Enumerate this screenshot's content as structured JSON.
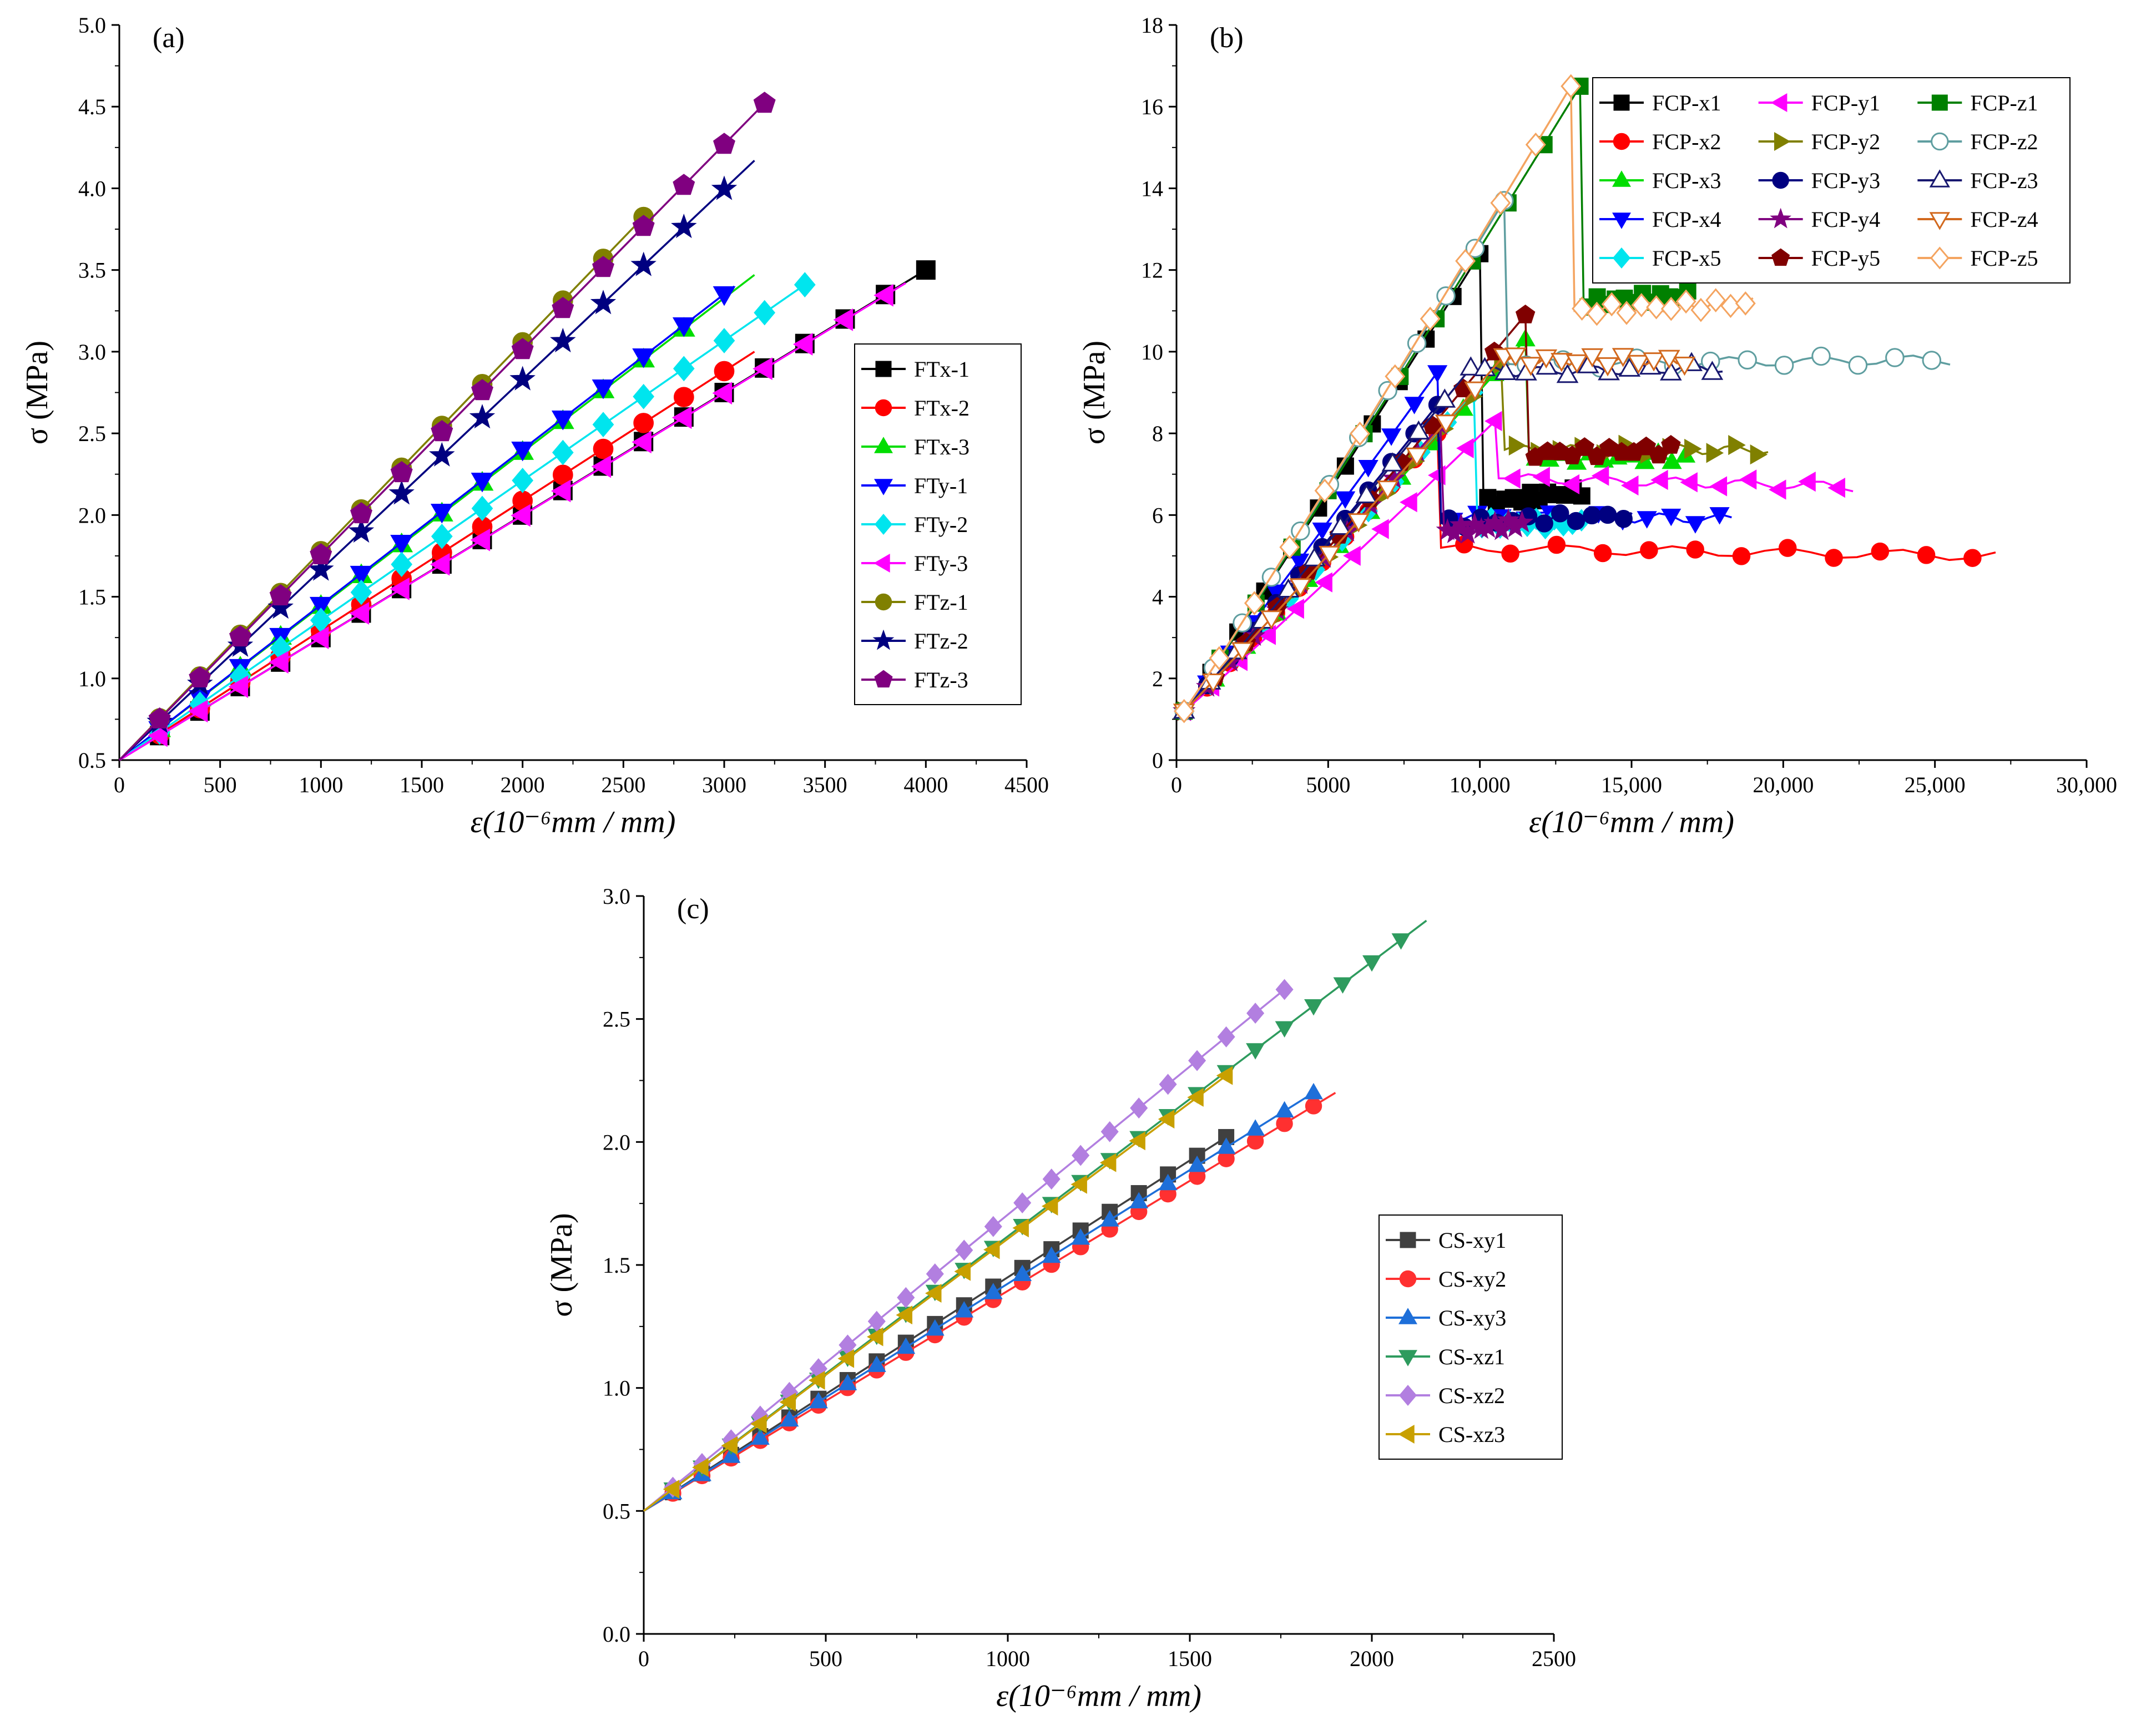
{
  "chart_data": [
    {
      "id": "a",
      "type": "line",
      "panel_label": "(a)",
      "xlabel": "ε(10⁻⁶mm / mm)",
      "ylabel": "σ (MPa)",
      "xlim": [
        0,
        4500
      ],
      "ylim": [
        0.5,
        5.0
      ],
      "xticks": [
        "0",
        "500",
        "1000",
        "1500",
        "2000",
        "2500",
        "3000",
        "3500",
        "4000",
        "4500"
      ],
      "yticks": [
        "0.5",
        "1.0",
        "1.5",
        "2.0",
        "2.5",
        "3.0",
        "3.5",
        "4.0",
        "4.5",
        "5.0"
      ],
      "legend_position": "right",
      "series": [
        {
          "name": "FTx-1",
          "color": "#000000",
          "marker": "square",
          "end": [
            4000,
            3.5
          ],
          "last_marker": 4000,
          "step": 200
        },
        {
          "name": "FTx-2",
          "color": "#ff0000",
          "marker": "circle",
          "end": [
            3150,
            3.0
          ],
          "last_marker": 3000,
          "step": 200
        },
        {
          "name": "FTx-3",
          "color": "#00dd00",
          "marker": "triangle-up",
          "end": [
            3150,
            3.47
          ],
          "last_marker": 2800,
          "step": 200
        },
        {
          "name": "FTy-1",
          "color": "#0000ff",
          "marker": "triangle-down",
          "end": [
            3050,
            3.4
          ],
          "last_marker": 3000,
          "step": 200
        },
        {
          "name": "FTy-2",
          "color": "#00e5ee",
          "marker": "diamond",
          "end": [
            3400,
            3.41
          ],
          "last_marker": 3400,
          "step": 200
        },
        {
          "name": "FTy-3",
          "color": "#ff00ff",
          "marker": "triangle-left",
          "end": [
            3900,
            3.42
          ],
          "last_marker": 3800,
          "step": 200
        },
        {
          "name": "FTz-1",
          "color": "#808000",
          "marker": "circle",
          "end": [
            2620,
            3.85
          ],
          "last_marker": 2600,
          "step": 200
        },
        {
          "name": "FTz-2",
          "color": "#000080",
          "marker": "star",
          "end": [
            3150,
            4.17
          ],
          "last_marker": 3000,
          "step": 200
        },
        {
          "name": "FTz-3",
          "color": "#800080",
          "marker": "pentagon",
          "end": [
            3200,
            4.52
          ],
          "last_marker": 3200,
          "step": 200
        }
      ]
    },
    {
      "id": "b",
      "type": "line",
      "panel_label": "(b)",
      "xlabel": "ε(10⁻⁶mm / mm)",
      "ylabel": "σ (MPa)",
      "xlim": [
        0,
        30000
      ],
      "ylim": [
        0,
        18
      ],
      "xticks": [
        "0",
        "5000",
        "10,000",
        "15,000",
        "20,000",
        "25,000",
        "30,000"
      ],
      "yticks": [
        "0",
        "2",
        "4",
        "6",
        "8",
        "10",
        "12",
        "14",
        "16",
        "18"
      ],
      "legend_position": "top-right",
      "series": [
        {
          "name": "FCP-x1",
          "color": "#000000",
          "marker": "square",
          "peak": [
            10000,
            12.4
          ],
          "drop": 6.3,
          "residual": 6.6,
          "end": 13500
        },
        {
          "name": "FCP-x2",
          "color": "#ff0000",
          "marker": "circle",
          "peak": [
            8600,
            8.0
          ],
          "drop": 5.2,
          "residual": 5.0,
          "end": 27000
        },
        {
          "name": "FCP-x3",
          "color": "#00dd00",
          "marker": "triangle-up",
          "peak": [
            11500,
            10.3
          ],
          "drop": 7.4,
          "residual": 7.4,
          "end": 17000
        },
        {
          "name": "FCP-x4",
          "color": "#0000ff",
          "marker": "triangle-down",
          "peak": [
            8600,
            9.5
          ],
          "drop": 6.0,
          "residual": 5.9,
          "end": 18300
        },
        {
          "name": "FCP-x5",
          "color": "#00e5ee",
          "marker": "diamond",
          "peak": [
            9800,
            9.0
          ],
          "drop": 5.8,
          "residual": 5.8,
          "end": 13500
        },
        {
          "name": "FCP-y1",
          "color": "#ff00ff",
          "marker": "triangle-left",
          "peak": [
            10500,
            8.3
          ],
          "drop": 6.9,
          "residual": 6.7,
          "end": 22300
        },
        {
          "name": "FCP-y2",
          "color": "#808000",
          "marker": "triangle-right",
          "peak": [
            10700,
            9.7
          ],
          "drop": 7.6,
          "residual": 7.6,
          "end": 19500
        },
        {
          "name": "FCP-y3",
          "color": "#000080",
          "marker": "circle",
          "peak": [
            8600,
            8.7
          ],
          "drop": 5.8,
          "residual": 6.0,
          "end": 15000
        },
        {
          "name": "FCP-y4",
          "color": "#800080",
          "marker": "star",
          "peak": [
            8700,
            8.2
          ],
          "drop": 5.6,
          "residual": 5.8,
          "end": 11500
        },
        {
          "name": "FCP-y5",
          "color": "#800000",
          "marker": "pentagon",
          "peak": [
            11500,
            10.9
          ],
          "drop": 7.5,
          "residual": 7.6,
          "end": 16500
        },
        {
          "name": "FCP-z1",
          "color": "#008000",
          "marker": "square",
          "peak": [
            13300,
            16.5
          ],
          "drop": 11.2,
          "residual": 11.4,
          "end": 17000
        },
        {
          "name": "FCP-z2",
          "color": "#5f9ea0",
          "marker": "circle-open",
          "peak": [
            10800,
            13.7
          ],
          "drop": 9.7,
          "residual": 9.8,
          "end": 25500
        },
        {
          "name": "FCP-z3",
          "color": "#191970",
          "marker": "triangle-open",
          "peak": [
            9700,
            9.6
          ],
          "drop": 9.5,
          "residual": 9.6,
          "end": 18000
        },
        {
          "name": "FCP-z4",
          "color": "#d2691e",
          "marker": "triangle-down-open",
          "peak": [
            10800,
            9.9
          ],
          "drop": 9.8,
          "residual": 9.8,
          "end": 17000
        },
        {
          "name": "FCP-z5",
          "color": "#f4a460",
          "marker": "diamond-open",
          "peak": [
            13000,
            16.5
          ],
          "drop": 11.0,
          "residual": 11.2,
          "end": 19000
        }
      ]
    },
    {
      "id": "c",
      "type": "line",
      "panel_label": "(c)",
      "xlabel": "ε(10⁻⁶mm / mm)",
      "ylabel": "σ (MPa)",
      "xlim": [
        0,
        2500
      ],
      "ylim": [
        0.0,
        3.0
      ],
      "xticks": [
        "0",
        "500",
        "1000",
        "1500",
        "2000",
        "2500"
      ],
      "yticks": [
        "0.0",
        "0.5",
        "1.0",
        "1.5",
        "2.0",
        "2.5",
        "3.0"
      ],
      "legend_position": "right",
      "series": [
        {
          "name": "CS-xy1",
          "color": "#404040",
          "marker": "square",
          "end": [
            1600,
            2.02
          ],
          "last_marker": 1600,
          "step": 80
        },
        {
          "name": "CS-xy2",
          "color": "#ff3030",
          "marker": "circle",
          "end": [
            1900,
            2.2
          ],
          "last_marker": 1840,
          "step": 80
        },
        {
          "name": "CS-xy3",
          "color": "#1e6fd9",
          "marker": "triangle-up",
          "end": [
            1840,
            2.2
          ],
          "last_marker": 1840,
          "step": 80
        },
        {
          "name": "CS-xz1",
          "color": "#2e9b5e",
          "marker": "triangle-down",
          "end": [
            2150,
            2.9
          ],
          "last_marker": 2080,
          "step": 80
        },
        {
          "name": "CS-xz2",
          "color": "#b27fe0",
          "marker": "diamond",
          "end": [
            1760,
            2.62
          ],
          "last_marker": 1760,
          "step": 80
        },
        {
          "name": "CS-xz3",
          "color": "#c8a000",
          "marker": "triangle-left",
          "end": [
            1600,
            2.27
          ],
          "last_marker": 1600,
          "step": 80
        }
      ]
    }
  ]
}
